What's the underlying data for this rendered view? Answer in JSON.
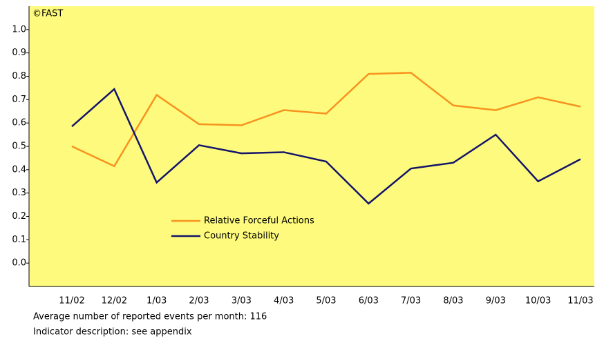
{
  "chart_data": {
    "type": "line",
    "annotation": "©FAST",
    "categories": [
      "11/02",
      "12/02",
      "1/03",
      "2/03",
      "3/03",
      "4/03",
      "5/03",
      "6/03",
      "7/03",
      "8/03",
      "9/03",
      "10/03",
      "11/03"
    ],
    "series": [
      {
        "name": "Relative Forceful Actions",
        "color": "#f7931e",
        "values": [
          0.5,
          0.415,
          0.72,
          0.595,
          0.59,
          0.655,
          0.64,
          0.81,
          0.815,
          0.675,
          0.655,
          0.71,
          0.67
        ]
      },
      {
        "name": "Country Stability",
        "color": "#14146b",
        "values": [
          0.585,
          0.745,
          0.345,
          0.505,
          0.47,
          0.475,
          0.435,
          0.255,
          0.405,
          0.43,
          0.55,
          0.35,
          0.445
        ]
      }
    ],
    "ylim": [
      -0.1,
      1.1
    ],
    "yticks": [
      {
        "value": 0,
        "label": "0.0"
      },
      0.1,
      0.2,
      0.3,
      0.4,
      0.5,
      0.6,
      0.7,
      0.8,
      0.9,
      {
        "value": 1,
        "label": "1.0"
      }
    ],
    "background": "#fdfa7d",
    "notes": [
      "Average number of reported events per month: 116",
      "Indicator description: see appendix"
    ]
  }
}
